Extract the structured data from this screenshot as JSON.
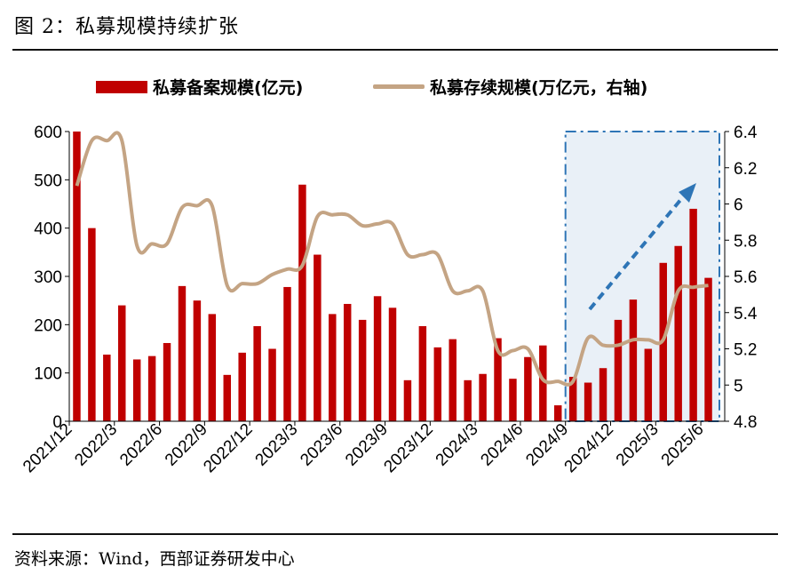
{
  "header": {
    "title": "图 2：私募规模持续扩张"
  },
  "footer": {
    "source": "资料来源：Wind，西部证券研发中心"
  },
  "legend": {
    "bar": "私募备案规模(亿元)",
    "line": "私募存续规模(万亿元，右轴)"
  },
  "colors": {
    "bar": "#c00000",
    "line": "#c4a484",
    "highlight_fill": "#e9f0f7",
    "highlight_border": "#2e75b6",
    "arrow": "#2e75b6"
  },
  "chart_data": {
    "type": "bar+line",
    "x": [
      "2021/12",
      "2022/1",
      "2022/2",
      "2022/3",
      "2022/4",
      "2022/5",
      "2022/6",
      "2022/7",
      "2022/8",
      "2022/9",
      "2022/10",
      "2022/11",
      "2022/12",
      "2023/1",
      "2023/2",
      "2023/3",
      "2023/4",
      "2023/5",
      "2023/6",
      "2023/7",
      "2023/8",
      "2023/9",
      "2023/10",
      "2023/11",
      "2023/12",
      "2024/1",
      "2024/2",
      "2024/3",
      "2024/4",
      "2024/5",
      "2024/6",
      "2024/7",
      "2024/8",
      "2024/9",
      "2024/10",
      "2024/11",
      "2024/12",
      "2025/1",
      "2025/2",
      "2025/3",
      "2025/4",
      "2025/5",
      "2025/6"
    ],
    "x_tick_labels": [
      "2021/12",
      "2022/3",
      "2022/6",
      "2022/9",
      "2022/12",
      "2023/3",
      "2023/6",
      "2023/9",
      "2023/12",
      "2024/3",
      "2024/6",
      "2024/9",
      "2024/12",
      "2025/3",
      "2025/6"
    ],
    "series": [
      {
        "name": "私募备案规模(亿元)",
        "type": "bar",
        "axis": "left",
        "values": [
          600,
          400,
          138,
          240,
          128,
          135,
          162,
          280,
          250,
          222,
          96,
          142,
          197,
          150,
          278,
          490,
          345,
          222,
          243,
          210,
          259,
          235,
          85,
          197,
          153,
          170,
          85,
          98,
          172,
          88,
          133,
          157,
          33,
          92,
          80,
          110,
          210,
          252,
          150,
          328,
          363,
          440,
          297
        ]
      },
      {
        "name": "私募存续规模(万亿元，右轴)",
        "type": "line",
        "axis": "right",
        "values": [
          6.1,
          6.35,
          6.35,
          6.35,
          5.77,
          5.78,
          5.78,
          5.98,
          5.99,
          5.99,
          5.55,
          5.56,
          5.56,
          5.61,
          5.64,
          5.66,
          5.93,
          5.94,
          5.94,
          5.88,
          5.89,
          5.89,
          5.72,
          5.72,
          5.72,
          5.52,
          5.52,
          5.52,
          5.19,
          5.19,
          5.2,
          5.03,
          5.02,
          5.02,
          5.26,
          5.22,
          5.22,
          5.25,
          5.25,
          5.25,
          5.52,
          5.54,
          5.55
        ]
      }
    ],
    "y_left": {
      "min": 0,
      "max": 600,
      "ticks": [
        "0",
        "100",
        "200",
        "300",
        "400",
        "500",
        "600"
      ]
    },
    "y_right": {
      "min": 4.8,
      "max": 6.4,
      "ticks": [
        "4.8",
        "5",
        "5.2",
        "5.4",
        "5.6",
        "5.8",
        "6",
        "6.2",
        "6.4"
      ]
    },
    "highlight_region": {
      "from": "2024/9",
      "to": "2025/6"
    },
    "legend_position": "top",
    "grid": false
  }
}
